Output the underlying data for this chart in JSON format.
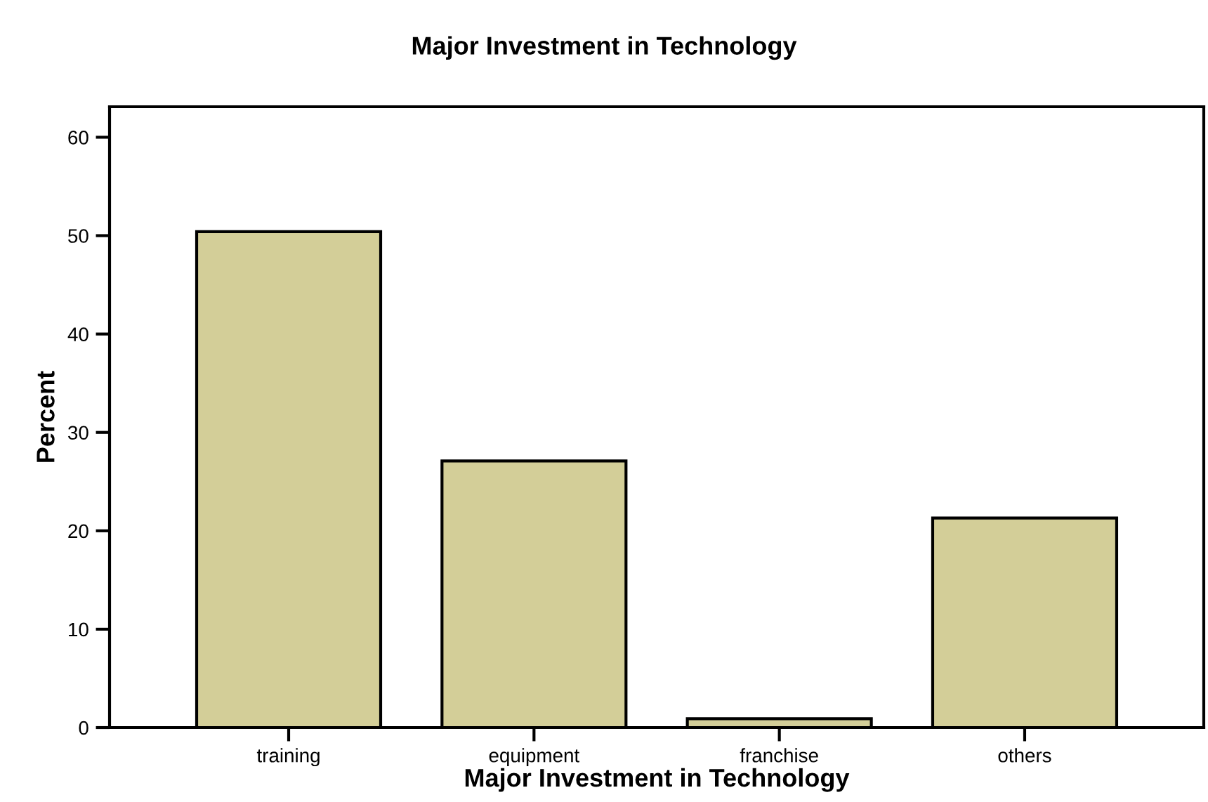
{
  "chart_data": {
    "type": "bar",
    "title": "Major Investment in Technology",
    "xlabel": "Major Investment in Technology",
    "ylabel": "Percent",
    "categories": [
      "training",
      "equipment",
      "franchise",
      "others"
    ],
    "values": [
      50.4,
      27.1,
      0.9,
      21.3
    ],
    "color": "#d3ce98",
    "ylim": [
      0,
      63.1
    ],
    "yticks": [
      0,
      10,
      20,
      30,
      40,
      50,
      60
    ],
    "grid": false
  }
}
